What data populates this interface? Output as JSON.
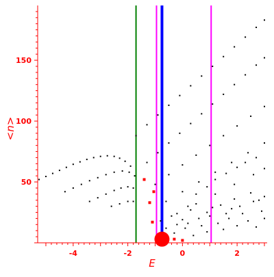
{
  "chart_data": {
    "type": "scatter",
    "title": "",
    "xlabel": "E",
    "ylabel": "<n>",
    "xlim": [
      -5.3,
      3.1
    ],
    "ylim": [
      0,
      195
    ],
    "x_ticks": [
      -4,
      -2,
      0,
      2
    ],
    "x_tick_labels": [
      "-4",
      "-2",
      "0",
      "2"
    ],
    "y_ticks": [
      50,
      100,
      150
    ],
    "y_tick_labels": [
      "50",
      "100",
      "150"
    ],
    "grid": false,
    "legend": "none",
    "colors": {
      "axis": "#ff0000",
      "points": "#000000",
      "highlight": "#ff0000",
      "green_line": "#008000",
      "blue_line": "#0000ff",
      "magenta_line": "#ff00ff"
    },
    "vertical_lines": [
      {
        "x": -1.7,
        "color": "#008000",
        "width": "medium"
      },
      {
        "x": -0.95,
        "color": "#ff00ff",
        "width": "medium"
      },
      {
        "x": -0.75,
        "color": "#0000ff",
        "width": "thick"
      },
      {
        "x": 1.05,
        "color": "#ff00ff",
        "width": "medium"
      }
    ],
    "series": [
      {
        "color": "#000000",
        "points": [
          [
            -5.25,
            52
          ],
          [
            -5.0,
            54.5
          ],
          [
            -4.75,
            57
          ],
          [
            -4.5,
            59.5
          ],
          [
            -4.25,
            62
          ],
          [
            -4.0,
            64.5
          ],
          [
            -3.75,
            66.5
          ],
          [
            -3.5,
            68.5
          ],
          [
            -3.25,
            70
          ],
          [
            -3.0,
            71
          ],
          [
            -2.75,
            71.5
          ],
          [
            -2.5,
            71
          ],
          [
            -2.3,
            69.5
          ],
          [
            -2.1,
            67
          ],
          [
            -1.9,
            63
          ],
          [
            -4.3,
            42
          ],
          [
            -4.0,
            45
          ],
          [
            -3.7,
            48
          ],
          [
            -3.4,
            51
          ],
          [
            -3.1,
            53.5
          ],
          [
            -2.8,
            56
          ],
          [
            -2.5,
            58
          ],
          [
            -2.2,
            59
          ],
          [
            -1.95,
            58
          ],
          [
            -1.75,
            55
          ],
          [
            -3.4,
            34
          ],
          [
            -3.1,
            37
          ],
          [
            -2.8,
            40
          ],
          [
            -2.5,
            43
          ],
          [
            -2.25,
            45
          ],
          [
            -2.0,
            46
          ],
          [
            -1.8,
            45
          ],
          [
            -2.6,
            30
          ],
          [
            -2.3,
            32
          ],
          [
            -2.0,
            34
          ],
          [
            -1.8,
            34
          ],
          [
            -1.7,
            88
          ],
          [
            -1.3,
            97
          ],
          [
            -0.9,
            105
          ],
          [
            -0.5,
            113
          ],
          [
            -0.1,
            121
          ],
          [
            0.3,
            129
          ],
          [
            0.7,
            137
          ],
          [
            1.1,
            145
          ],
          [
            1.5,
            153
          ],
          [
            1.9,
            161
          ],
          [
            2.3,
            169
          ],
          [
            2.7,
            177
          ],
          [
            3.0,
            183
          ],
          [
            -1.3,
            66
          ],
          [
            -0.9,
            74
          ],
          [
            -0.5,
            82
          ],
          [
            -0.1,
            90
          ],
          [
            0.3,
            98
          ],
          [
            0.7,
            106
          ],
          [
            1.1,
            114
          ],
          [
            1.5,
            122
          ],
          [
            1.9,
            130
          ],
          [
            2.3,
            138
          ],
          [
            2.7,
            146
          ],
          [
            3.0,
            152
          ],
          [
            -1.0,
            48
          ],
          [
            -0.5,
            56
          ],
          [
            0.0,
            64
          ],
          [
            0.5,
            72
          ],
          [
            1.0,
            80
          ],
          [
            1.5,
            88
          ],
          [
            2.0,
            96
          ],
          [
            2.5,
            104
          ],
          [
            3.0,
            112
          ],
          [
            -0.6,
            34
          ],
          [
            0.0,
            42
          ],
          [
            0.6,
            50
          ],
          [
            1.2,
            58
          ],
          [
            1.8,
            66
          ],
          [
            2.4,
            74
          ],
          [
            3.0,
            82
          ],
          [
            -0.2,
            24
          ],
          [
            0.5,
            32
          ],
          [
            1.2,
            40
          ],
          [
            1.9,
            48
          ],
          [
            2.6,
            56
          ],
          [
            3.0,
            61
          ],
          [
            0.2,
            16
          ],
          [
            1.0,
            22
          ],
          [
            1.8,
            28
          ],
          [
            2.6,
            34
          ],
          [
            3.0,
            38
          ],
          [
            -0.3,
            8
          ],
          [
            0.1,
            12
          ],
          [
            0.4,
            6
          ],
          [
            0.7,
            14
          ],
          [
            0.9,
            9
          ],
          [
            1.3,
            16
          ],
          [
            1.5,
            11
          ],
          [
            1.7,
            20
          ],
          [
            2.0,
            14
          ],
          [
            2.2,
            24
          ],
          [
            2.4,
            18
          ],
          [
            2.7,
            13
          ],
          [
            2.9,
            26
          ],
          [
            3.0,
            20
          ],
          [
            -0.8,
            18
          ],
          [
            -0.6,
            12
          ],
          [
            -0.4,
            22
          ],
          [
            -0.2,
            15
          ],
          [
            0.0,
            19
          ],
          [
            0.3,
            27
          ],
          [
            0.6,
            20
          ],
          [
            0.9,
            25
          ],
          [
            1.1,
            29
          ],
          [
            1.4,
            31
          ],
          [
            1.6,
            24
          ],
          [
            1.9,
            36
          ],
          [
            2.1,
            30
          ],
          [
            2.5,
            41
          ],
          [
            2.8,
            35
          ],
          [
            0.2,
            30
          ],
          [
            0.5,
            40
          ],
          [
            0.9,
            46
          ],
          [
            1.2,
            52
          ],
          [
            1.6,
            57
          ],
          [
            2.0,
            62
          ],
          [
            2.3,
            66
          ],
          [
            2.7,
            70
          ]
        ]
      },
      {
        "color": "#ff0000",
        "points": [
          [
            -1.4,
            52
          ],
          [
            -1.2,
            33
          ],
          [
            -1.1,
            17
          ],
          [
            -1.05,
            42
          ],
          [
            -0.6,
            4
          ],
          [
            -0.3,
            3
          ],
          [
            0.0,
            2
          ]
        ]
      },
      {
        "color": "#ff0000",
        "points": [
          [
            -0.75,
            3
          ]
        ]
      }
    ]
  }
}
